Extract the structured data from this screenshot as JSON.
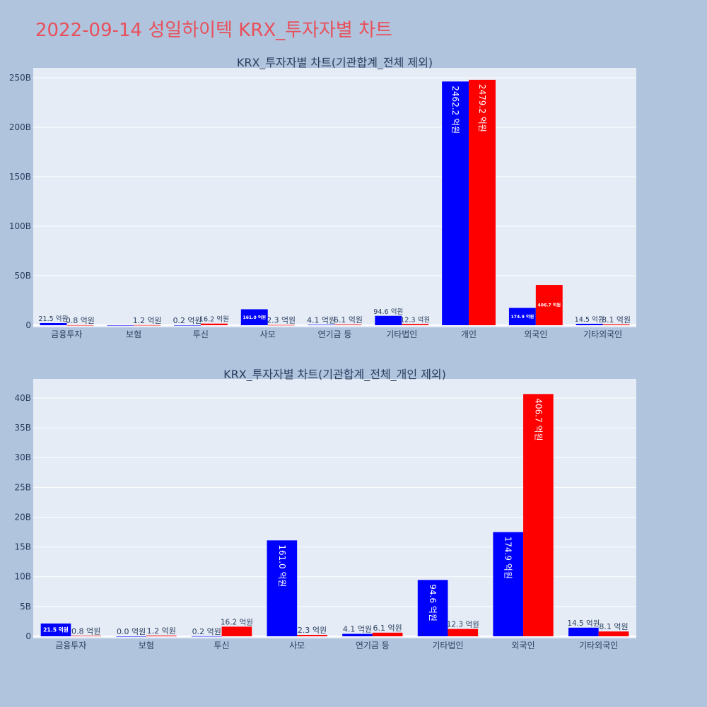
{
  "page_title": "2022-09-14 성일하이텍 KRX_투자자별 차트",
  "colors": {
    "background": "#b0c4de",
    "plot_bg": "#e5ecf6",
    "title": "#e8505b",
    "buy": "#0000ff",
    "sell": "#ff0000",
    "text": "#2a3f5f"
  },
  "chart_data": [
    {
      "type": "bar",
      "title": "KRX_투자자별 차트(기관합계_전체 제외)",
      "categories": [
        "금융투자",
        "보험",
        "투신",
        "사모",
        "연기금 등",
        "기타법인",
        "개인",
        "외국인",
        "기타외국인"
      ],
      "ylim": [
        0,
        260
      ],
      "yticks": [
        0,
        50,
        100,
        150,
        200,
        250
      ],
      "ytick_labels": [
        "0",
        "50B",
        "100B",
        "150B",
        "200B",
        "250B"
      ],
      "series": [
        {
          "color": "#0000ff",
          "values": [
            2.15,
            0,
            0.02,
            16.1,
            0.41,
            9.46,
            246.22,
            17.49,
            1.45
          ],
          "labels": [
            "21.5 억원",
            "",
            "0.2 억원",
            "161.0 억원",
            "4.1 억원",
            "94.6 억원",
            "2462.2 억원",
            "174.9 억원",
            "14.5 억원"
          ]
        },
        {
          "color": "#ff0000",
          "values": [
            0.08,
            0.12,
            1.62,
            0.23,
            0.61,
            1.23,
            247.92,
            40.67,
            0.81
          ],
          "labels": [
            "0.8 억원",
            "1.2 억원",
            "16.2 억원",
            "2.3 억원",
            "6.1 억원",
            "12.3 억원",
            "2479.2 억원",
            "406.7 억원",
            "8.1 억원"
          ]
        }
      ]
    },
    {
      "type": "bar",
      "title": "KRX_투자자별 차트(기관합계_전체_개인 제외)",
      "categories": [
        "금융투자",
        "보험",
        "투신",
        "사모",
        "연기금 등",
        "기타법인",
        "외국인",
        "기타외국인"
      ],
      "ylim": [
        0,
        43.2
      ],
      "yticks": [
        0,
        5,
        10,
        15,
        20,
        25,
        30,
        35,
        40
      ],
      "ytick_labels": [
        "0",
        "5B",
        "10B",
        "15B",
        "20B",
        "25B",
        "30B",
        "35B",
        "40B"
      ],
      "series": [
        {
          "color": "#0000ff",
          "values": [
            2.15,
            0,
            0.02,
            16.1,
            0.41,
            9.46,
            17.49,
            1.45
          ],
          "labels": [
            "21.5 억원",
            "0.0 억원",
            "0.2 억원",
            "161.0 억원",
            "4.1 억원",
            "94.6 억원",
            "174.9 억원",
            "14.5 억원"
          ]
        },
        {
          "color": "#ff0000",
          "values": [
            0.08,
            0.12,
            1.62,
            0.23,
            0.61,
            1.23,
            40.67,
            0.81
          ],
          "labels": [
            "0.8 억원",
            "1.2 억원",
            "16.2 억원",
            "2.3 억원",
            "6.1 억원",
            "12.3 억원",
            "406.7 억원",
            "8.1 억원"
          ]
        }
      ]
    }
  ]
}
